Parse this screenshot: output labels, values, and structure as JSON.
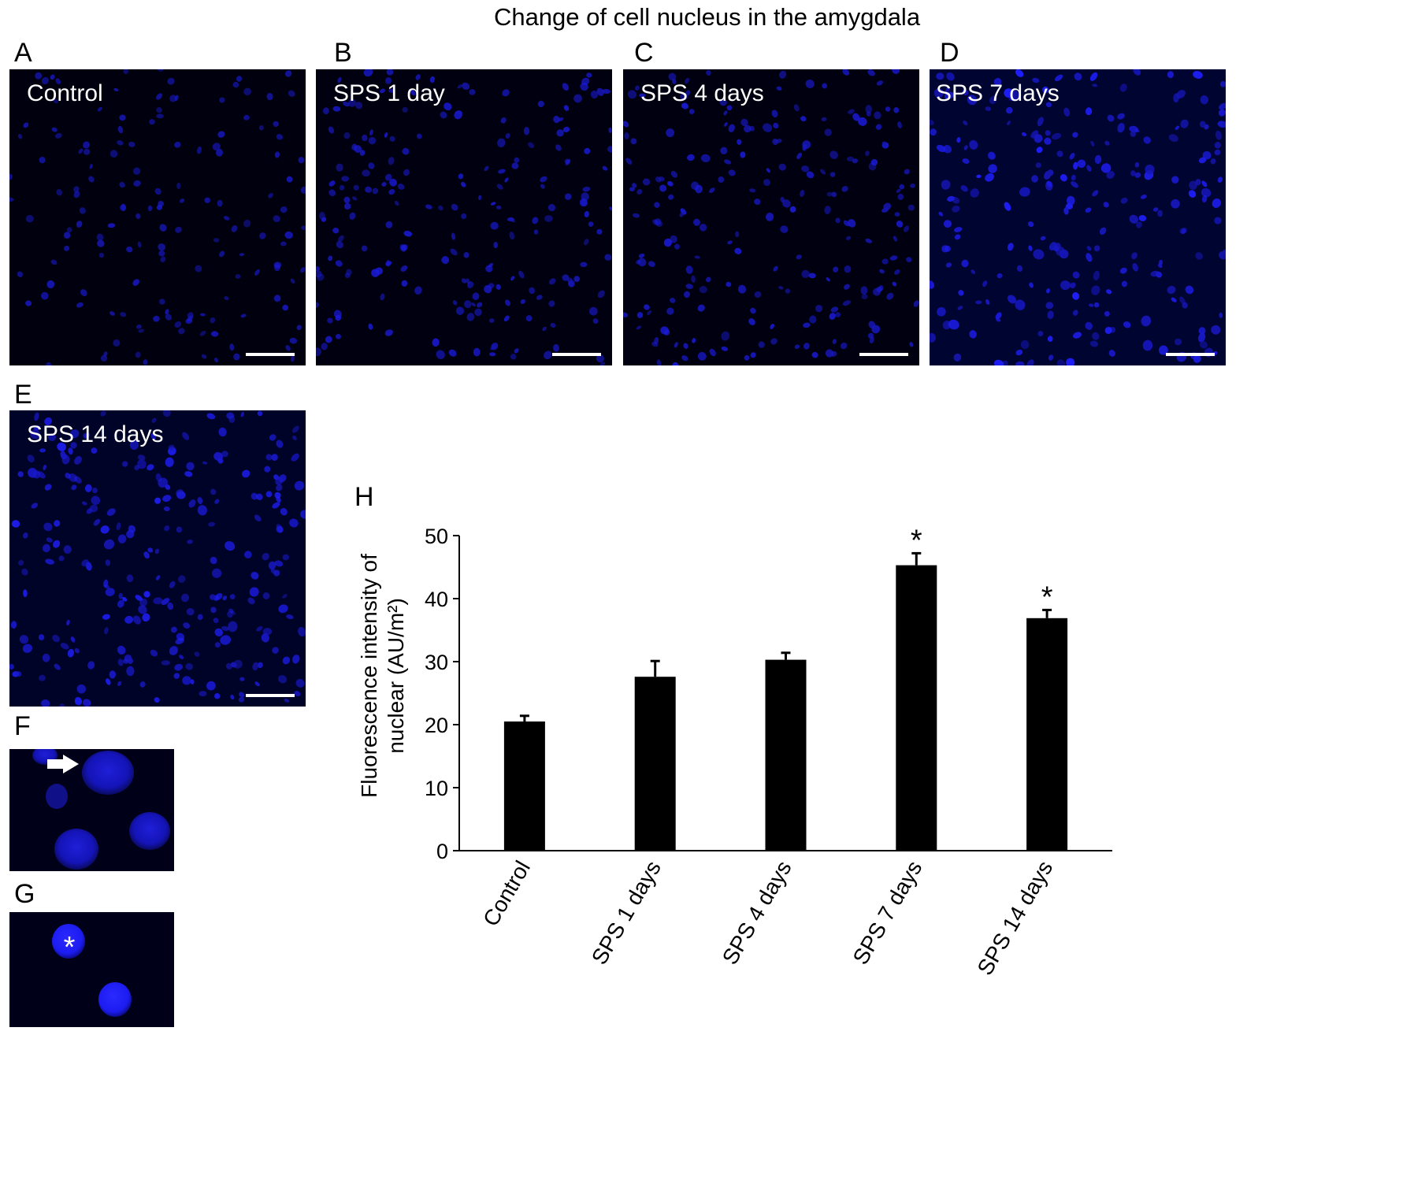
{
  "figure_title": "Change of cell nucleus in the amygdala",
  "panels": [
    {
      "letter": "A",
      "label": "Control",
      "density": 150,
      "brightness": 0.55,
      "bg": "#00000f",
      "seed": 11
    },
    {
      "letter": "B",
      "label": "SPS 1 day",
      "density": 210,
      "brightness": 0.7,
      "bg": "#000010",
      "seed": 23
    },
    {
      "letter": "C",
      "label": "SPS 4 days",
      "density": 220,
      "brightness": 0.72,
      "bg": "#000010",
      "seed": 37
    },
    {
      "letter": "D",
      "label": "SPS 7 days",
      "density": 240,
      "brightness": 1.0,
      "bg": "#000430",
      "seed": 41
    },
    {
      "letter": "E",
      "label": "SPS 14 days",
      "density": 260,
      "brightness": 0.95,
      "bg": "#000328",
      "seed": 53
    }
  ],
  "insets": [
    {
      "letter": "F",
      "marker": "arrow"
    },
    {
      "letter": "G",
      "marker": "asterisk"
    }
  ],
  "chart_panel_letter": "H",
  "colors": {
    "nucleus": "#2222ff",
    "bar": "#000000",
    "micro_bg": "#000010"
  },
  "chart_data": {
    "type": "bar",
    "categories": [
      "Control",
      "SPS 1 days",
      "SPS 4 days",
      "SPS 7 days",
      "SPS 14 days"
    ],
    "values": [
      20.5,
      27.6,
      30.3,
      45.3,
      36.9
    ],
    "errors": [
      0.9,
      2.5,
      1.1,
      1.9,
      1.3
    ],
    "significance": [
      "",
      "",
      "",
      "*",
      "*"
    ],
    "ylabel_line1": "Fluorescence intensity of",
    "ylabel_line2": "nuclear (AU/m²)",
    "ylim": [
      0,
      50
    ],
    "yticks": [
      0,
      10,
      20,
      30,
      40,
      50
    ],
    "grid": false
  }
}
